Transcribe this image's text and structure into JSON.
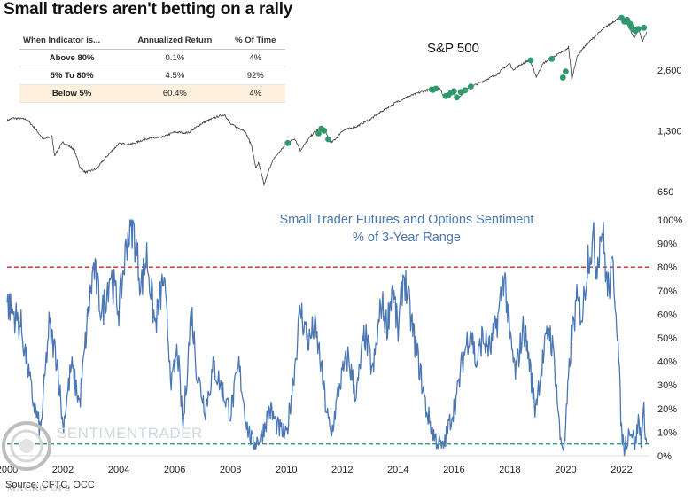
{
  "title": "Small traders aren't betting on a rally",
  "stats_table": {
    "headers": [
      "When Indicator is...",
      "Annualized Return",
      "% Of Time"
    ],
    "rows": [
      {
        "label": "Above 80%",
        "return": "0.1%",
        "time": "4%"
      },
      {
        "label": "5% To 80%",
        "return": "4.5%",
        "time": "92%"
      },
      {
        "label": "Below 5%",
        "return": "60.4%",
        "time": "4%"
      }
    ]
  },
  "source": "Source: CFTC, OCC",
  "watermark": "SENTIMENTRADER",
  "logo_text": "MACRO OPS",
  "colors": {
    "spx_line": "#3c3c3c",
    "signal_dot": "#2e9a6b",
    "sentiment_line": "#4a77b4",
    "upper_threshold": "#c0282a",
    "lower_threshold": "#2e9a6b",
    "highlight_row": "#fdf1dd"
  },
  "chart_data": [
    {
      "type": "line",
      "title": "S&P 500",
      "scale": "log",
      "y_ticks": [
        650,
        1300,
        2600
      ],
      "y_tick_labels": [
        "650",
        "1,300",
        "2,600"
      ],
      "ylim": [
        600,
        5000
      ],
      "anchors": [
        [
          2000.0,
          1460
        ],
        [
          2000.2,
          1500
        ],
        [
          2000.7,
          1480
        ],
        [
          2001.0,
          1330
        ],
        [
          2001.3,
          1180
        ],
        [
          2001.6,
          1220
        ],
        [
          2001.7,
          980
        ],
        [
          2002.0,
          1140
        ],
        [
          2002.4,
          1050
        ],
        [
          2002.6,
          860
        ],
        [
          2002.8,
          810
        ],
        [
          2003.2,
          840
        ],
        [
          2003.6,
          980
        ],
        [
          2004.0,
          1120
        ],
        [
          2004.5,
          1120
        ],
        [
          2005.0,
          1190
        ],
        [
          2005.5,
          1200
        ],
        [
          2006.0,
          1280
        ],
        [
          2006.5,
          1270
        ],
        [
          2007.0,
          1420
        ],
        [
          2007.5,
          1520
        ],
        [
          2007.8,
          1560
        ],
        [
          2008.0,
          1400
        ],
        [
          2008.5,
          1300
        ],
        [
          2008.75,
          1100
        ],
        [
          2008.9,
          850
        ],
        [
          2009.0,
          900
        ],
        [
          2009.2,
          700
        ],
        [
          2009.5,
          920
        ],
        [
          2010.0,
          1120
        ],
        [
          2010.3,
          1190
        ],
        [
          2010.5,
          1040
        ],
        [
          2011.0,
          1280
        ],
        [
          2011.3,
          1350
        ],
        [
          2011.6,
          1130
        ],
        [
          2011.8,
          1200
        ],
        [
          2012.0,
          1300
        ],
        [
          2012.5,
          1360
        ],
        [
          2013.0,
          1480
        ],
        [
          2013.5,
          1650
        ],
        [
          2014.0,
          1820
        ],
        [
          2014.5,
          1950
        ],
        [
          2015.0,
          2060
        ],
        [
          2015.5,
          2100
        ],
        [
          2015.65,
          1900
        ],
        [
          2016.0,
          2000
        ],
        [
          2016.1,
          1860
        ],
        [
          2016.5,
          2100
        ],
        [
          2017.0,
          2270
        ],
        [
          2017.5,
          2450
        ],
        [
          2018.0,
          2800
        ],
        [
          2018.1,
          2600
        ],
        [
          2018.7,
          2920
        ],
        [
          2018.95,
          2400
        ],
        [
          2019.2,
          2800
        ],
        [
          2019.5,
          2980
        ],
        [
          2020.0,
          3250
        ],
        [
          2020.1,
          3380
        ],
        [
          2020.22,
          2300
        ],
        [
          2020.4,
          3000
        ],
        [
          2020.6,
          3300
        ],
        [
          2021.0,
          3750
        ],
        [
          2021.5,
          4300
        ],
        [
          2022.0,
          4780
        ],
        [
          2022.2,
          4400
        ],
        [
          2022.45,
          3700
        ],
        [
          2022.6,
          4150
        ],
        [
          2022.75,
          3600
        ],
        [
          2022.9,
          4000
        ]
      ],
      "signal_dots": [
        [
          2010.05,
          1130
        ],
        [
          2011.15,
          1260
        ],
        [
          2011.25,
          1330
        ],
        [
          2011.35,
          1300
        ],
        [
          2011.5,
          1180
        ],
        [
          2015.2,
          2080
        ],
        [
          2015.25,
          2070
        ],
        [
          2015.35,
          2100
        ],
        [
          2015.7,
          1930
        ],
        [
          2015.8,
          1950
        ],
        [
          2015.9,
          2010
        ],
        [
          2016.0,
          2040
        ],
        [
          2016.1,
          1900
        ],
        [
          2016.25,
          2020
        ],
        [
          2016.4,
          2060
        ],
        [
          2016.6,
          2150
        ],
        [
          2018.75,
          2900
        ],
        [
          2019.5,
          2950
        ],
        [
          2019.9,
          2380
        ],
        [
          2020.0,
          2550
        ],
        [
          2022.0,
          4700
        ],
        [
          2022.1,
          4500
        ],
        [
          2022.2,
          4600
        ],
        [
          2022.3,
          4400
        ],
        [
          2022.35,
          4250
        ],
        [
          2022.45,
          4100
        ],
        [
          2022.5,
          4050
        ],
        [
          2022.6,
          4150
        ],
        [
          2022.8,
          4200
        ]
      ],
      "legend": "S&P 500"
    },
    {
      "type": "line",
      "title": "Small Trader Futures and Options Sentiment",
      "subtitle": "% of 3-Year Range",
      "xlim": [
        2000,
        2023
      ],
      "ylim": [
        0,
        100
      ],
      "x_ticks": [
        2000,
        2002,
        2004,
        2006,
        2008,
        2010,
        2012,
        2014,
        2016,
        2018,
        2020,
        2022
      ],
      "y_ticks": [
        0,
        10,
        20,
        30,
        40,
        50,
        60,
        70,
        80,
        90,
        100
      ],
      "y_tick_labels": [
        "0%",
        "10%",
        "20%",
        "30%",
        "40%",
        "50%",
        "60%",
        "70%",
        "80%",
        "90%",
        "100%"
      ],
      "thresholds": [
        80,
        5
      ],
      "anchors": [
        [
          2000.0,
          65
        ],
        [
          2000.5,
          55
        ],
        [
          2000.9,
          25
        ],
        [
          2001.2,
          10
        ],
        [
          2001.5,
          55
        ],
        [
          2001.8,
          40
        ],
        [
          2002.0,
          12
        ],
        [
          2002.3,
          38
        ],
        [
          2002.6,
          22
        ],
        [
          2002.9,
          60
        ],
        [
          2003.1,
          80
        ],
        [
          2003.4,
          60
        ],
        [
          2003.7,
          78
        ],
        [
          2004.0,
          62
        ],
        [
          2004.3,
          92
        ],
        [
          2004.5,
          98
        ],
        [
          2004.8,
          72
        ],
        [
          2005.0,
          85
        ],
        [
          2005.3,
          55
        ],
        [
          2005.6,
          75
        ],
        [
          2005.9,
          30
        ],
        [
          2006.1,
          45
        ],
        [
          2006.3,
          12
        ],
        [
          2006.6,
          62
        ],
        [
          2006.8,
          35
        ],
        [
          2007.1,
          20
        ],
        [
          2007.4,
          38
        ],
        [
          2007.7,
          28
        ],
        [
          2008.0,
          18
        ],
        [
          2008.3,
          38
        ],
        [
          2008.6,
          12
        ],
        [
          2008.8,
          5
        ],
        [
          2009.1,
          8
        ],
        [
          2009.4,
          20
        ],
        [
          2009.7,
          12
        ],
        [
          2010.0,
          8
        ],
        [
          2010.3,
          38
        ],
        [
          2010.5,
          62
        ],
        [
          2010.8,
          48
        ],
        [
          2011.0,
          55
        ],
        [
          2011.2,
          42
        ],
        [
          2011.4,
          22
        ],
        [
          2011.6,
          8
        ],
        [
          2011.9,
          30
        ],
        [
          2012.2,
          42
        ],
        [
          2012.5,
          25
        ],
        [
          2012.8,
          52
        ],
        [
          2013.1,
          35
        ],
        [
          2013.4,
          65
        ],
        [
          2013.6,
          55
        ],
        [
          2013.8,
          72
        ],
        [
          2014.0,
          52
        ],
        [
          2014.2,
          78
        ],
        [
          2014.5,
          55
        ],
        [
          2014.8,
          35
        ],
        [
          2015.0,
          20
        ],
        [
          2015.3,
          8
        ],
        [
          2015.6,
          3
        ],
        [
          2015.8,
          12
        ],
        [
          2016.1,
          25
        ],
        [
          2016.3,
          40
        ],
        [
          2016.6,
          55
        ],
        [
          2016.8,
          38
        ],
        [
          2017.0,
          50
        ],
        [
          2017.3,
          45
        ],
        [
          2017.6,
          60
        ],
        [
          2017.8,
          78
        ],
        [
          2018.0,
          50
        ],
        [
          2018.2,
          35
        ],
        [
          2018.5,
          55
        ],
        [
          2018.7,
          40
        ],
        [
          2018.9,
          20
        ],
        [
          2019.1,
          35
        ],
        [
          2019.4,
          55
        ],
        [
          2019.6,
          40
        ],
        [
          2019.8,
          8
        ],
        [
          2019.95,
          3
        ],
        [
          2020.2,
          50
        ],
        [
          2020.4,
          65
        ],
        [
          2020.6,
          60
        ],
        [
          2020.8,
          85
        ],
        [
          2021.0,
          90
        ],
        [
          2021.1,
          80
        ],
        [
          2021.3,
          98
        ],
        [
          2021.5,
          70
        ],
        [
          2021.7,
          80
        ],
        [
          2021.85,
          55
        ],
        [
          2022.0,
          10
        ],
        [
          2022.1,
          3
        ],
        [
          2022.3,
          12
        ],
        [
          2022.5,
          5
        ],
        [
          2022.6,
          15
        ],
        [
          2022.7,
          8
        ],
        [
          2022.8,
          18
        ],
        [
          2022.9,
          5
        ]
      ]
    }
  ]
}
